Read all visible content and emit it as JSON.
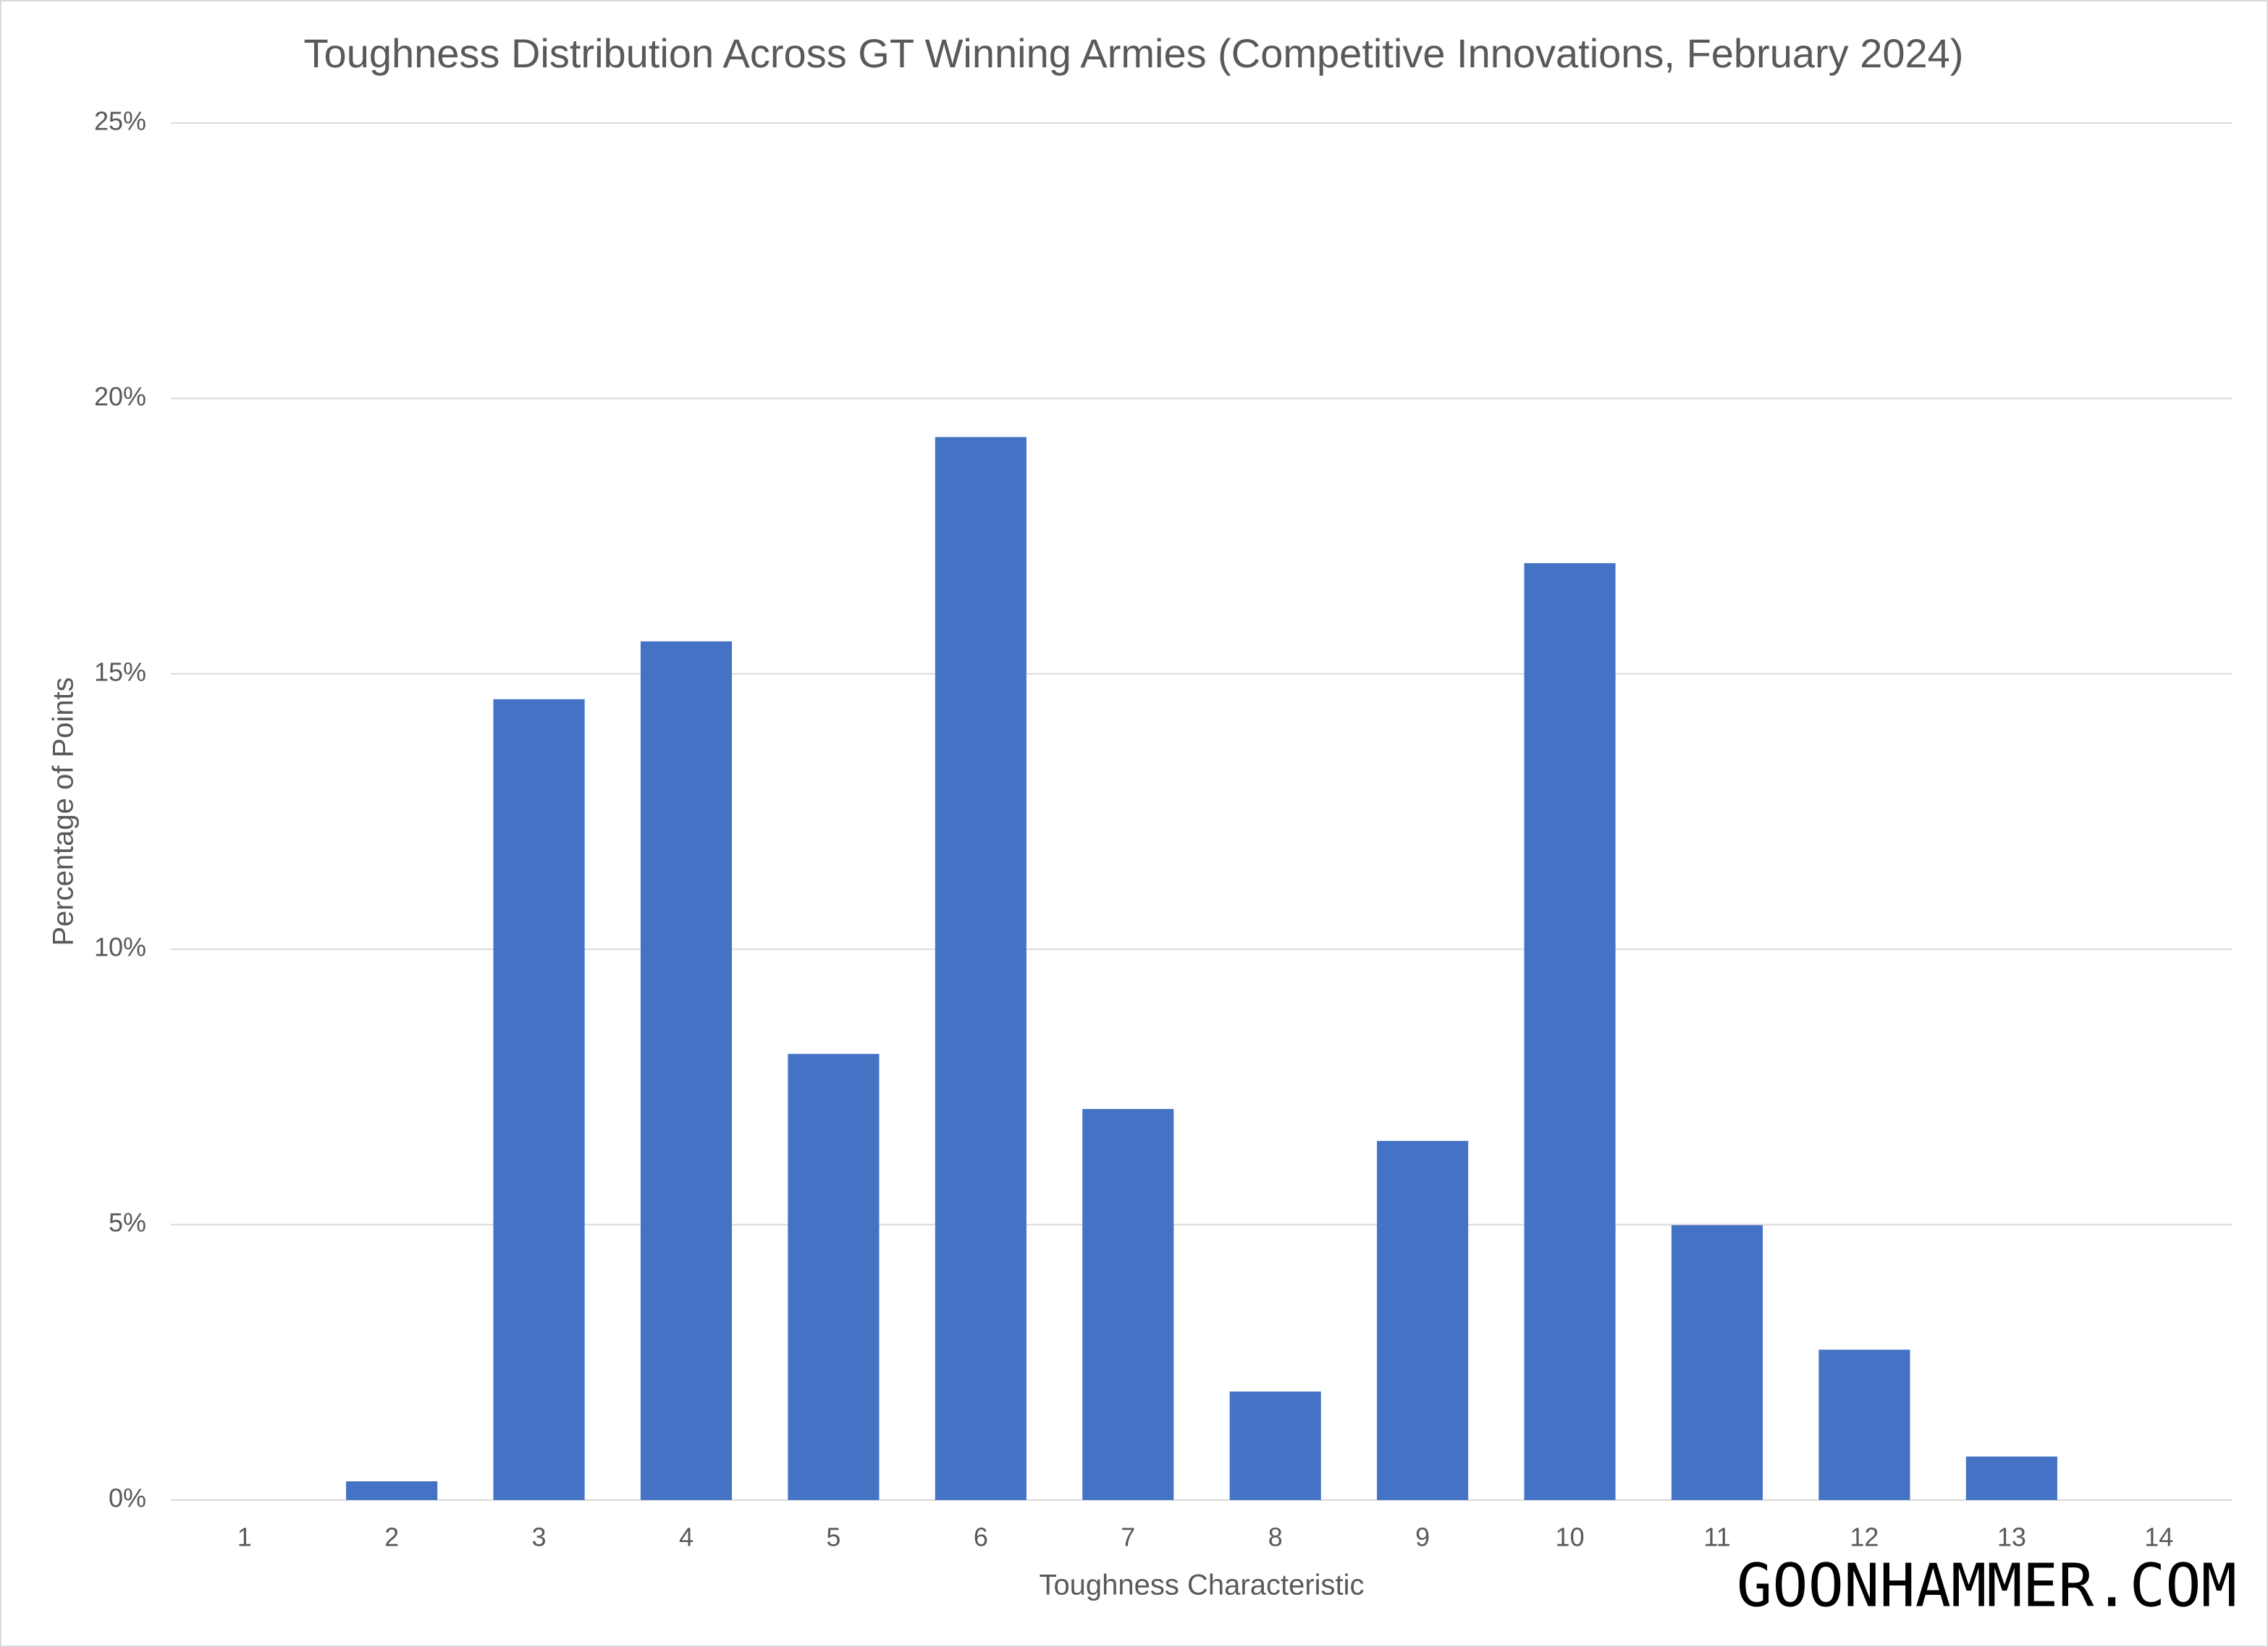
{
  "chart_data": {
    "type": "bar",
    "title": "Toughness Distribution Across GT Winning Armies (Competitive Innovations, February 2024)",
    "x_label": "Toughness Characteristic",
    "y_label": "Percentage of Points",
    "watermark": "GOONHAMMER.COM",
    "categories": [
      "1",
      "2",
      "3",
      "4",
      "5",
      "6",
      "7",
      "8",
      "9",
      "10",
      "11",
      "12",
      "13",
      "14"
    ],
    "values": [
      0,
      0.34,
      14.54,
      15.59,
      8.1,
      19.3,
      7.1,
      1.97,
      6.52,
      17.01,
      4.99,
      2.73,
      0.79,
      0
    ],
    "color": "#4472c4",
    "ylim": [
      0,
      25
    ],
    "yticks": [
      {
        "value": 0,
        "label": "0%"
      },
      {
        "value": 5,
        "label": "5%"
      },
      {
        "value": 10,
        "label": "10%"
      },
      {
        "value": 15,
        "label": "15%"
      },
      {
        "value": 20,
        "label": "20%"
      },
      {
        "value": 25,
        "label": "25%"
      }
    ],
    "grid": true
  }
}
